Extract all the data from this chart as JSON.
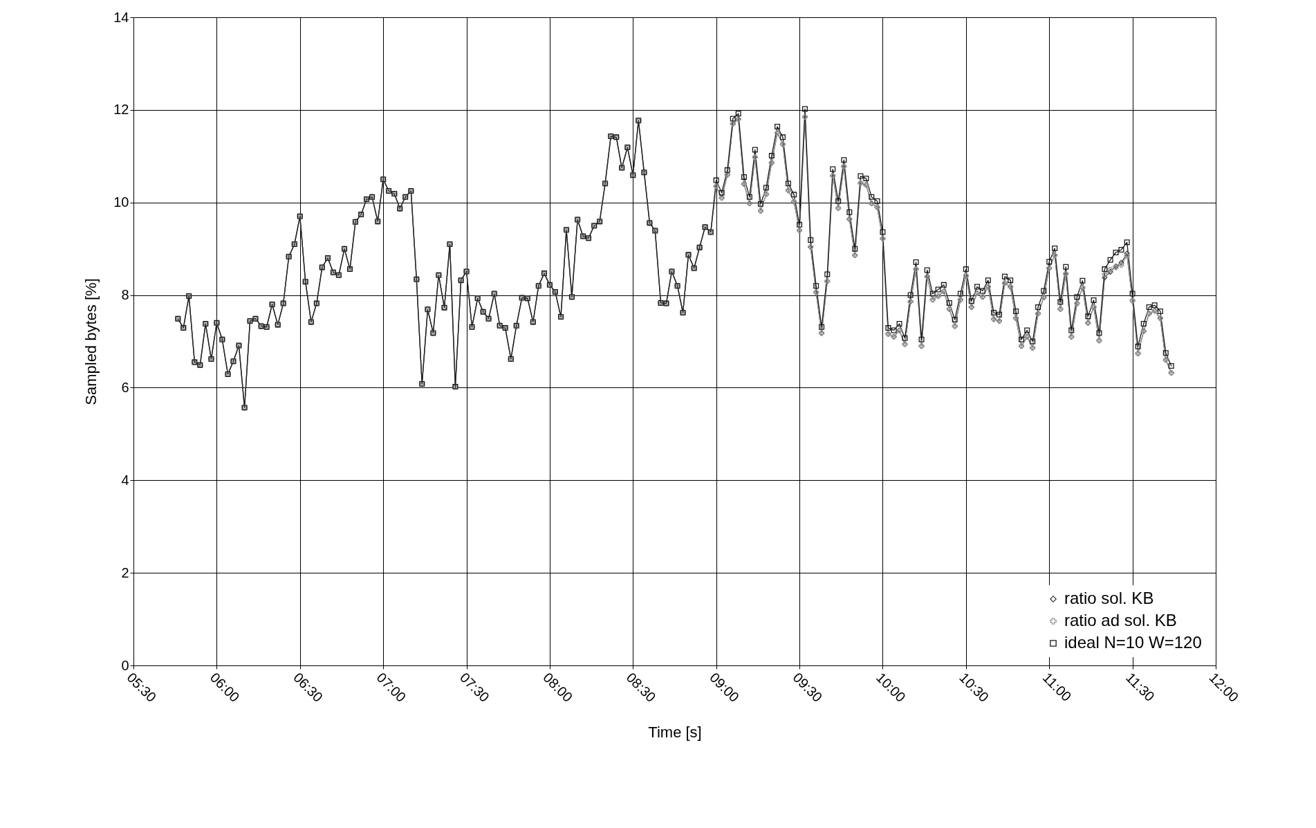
{
  "chart_data": {
    "type": "line",
    "xlabel": "Time [s]",
    "ylabel": "Sampled bytes [%]",
    "x": [
      5.767,
      5.8,
      5.833,
      5.867,
      5.9,
      5.933,
      5.967,
      6.0,
      6.033,
      6.067,
      6.1,
      6.133,
      6.167,
      6.2,
      6.233,
      6.267,
      6.3,
      6.333,
      6.367,
      6.4,
      6.433,
      6.467,
      6.5,
      6.533,
      6.567,
      6.6,
      6.633,
      6.667,
      6.7,
      6.733,
      6.767,
      6.8,
      6.833,
      6.867,
      6.9,
      6.933,
      6.967,
      7.0,
      7.033,
      7.067,
      7.1,
      7.133,
      7.167,
      7.2,
      7.233,
      7.267,
      7.3,
      7.333,
      7.367,
      7.4,
      7.433,
      7.467,
      7.5,
      7.533,
      7.567,
      7.6,
      7.633,
      7.667,
      7.7,
      7.733,
      7.767,
      7.8,
      7.833,
      7.867,
      7.9,
      7.933,
      7.967,
      8.0,
      8.033,
      8.067,
      8.1,
      8.133,
      8.167,
      8.2,
      8.233,
      8.267,
      8.3,
      8.333,
      8.367,
      8.4,
      8.433,
      8.467,
      8.5,
      8.533,
      8.567,
      8.6,
      8.633,
      8.667,
      8.7,
      8.733,
      8.767,
      8.8,
      8.833,
      8.867,
      8.9,
      8.933,
      8.967,
      9.0,
      9.033,
      9.067,
      9.1,
      9.133,
      9.167,
      9.2,
      9.233,
      9.267,
      9.3,
      9.333,
      9.367,
      9.4,
      9.433,
      9.467,
      9.5,
      9.533,
      9.567,
      9.6,
      9.633,
      9.667,
      9.7,
      9.733,
      9.767,
      9.8,
      9.833,
      9.867,
      9.9,
      9.933,
      9.967,
      10.0,
      10.033,
      10.067,
      10.1,
      10.133,
      10.167,
      10.2,
      10.233,
      10.267,
      10.3,
      10.333,
      10.367,
      10.4,
      10.433,
      10.467,
      10.5,
      10.533,
      10.567,
      10.6,
      10.633,
      10.667,
      10.7,
      10.733,
      10.767,
      10.8,
      10.833,
      10.867,
      10.9,
      10.933,
      10.967,
      11.0,
      11.033,
      11.067,
      11.1,
      11.133,
      11.167,
      11.2,
      11.233,
      11.267,
      11.3,
      11.333,
      11.367,
      11.4,
      11.433,
      11.467,
      11.5,
      11.533,
      11.567,
      11.6,
      11.633,
      11.667,
      11.7,
      11.733
    ],
    "series": [
      {
        "name": "ratio sol. KB",
        "color": "#404040",
        "marker": "diamond",
        "values": [
          7.49,
          7.29,
          7.98,
          6.55,
          6.49,
          7.38,
          6.62,
          7.4,
          7.04,
          6.29,
          6.57,
          6.91,
          5.57,
          7.44,
          7.49,
          7.33,
          7.31,
          7.8,
          7.36,
          7.82,
          8.83,
          9.1,
          9.7,
          8.29,
          7.42,
          7.82,
          8.6,
          8.8,
          8.49,
          8.43,
          9.0,
          8.56,
          9.58,
          9.74,
          10.07,
          10.12,
          9.59,
          10.5,
          10.25,
          10.19,
          9.87,
          10.12,
          10.25,
          8.34,
          6.08,
          7.69,
          7.18,
          8.43,
          7.73,
          9.1,
          6.02,
          8.32,
          8.51,
          7.31,
          7.93,
          7.64,
          7.49,
          8.03,
          7.34,
          7.29,
          6.62,
          7.34,
          7.94,
          7.93,
          7.42,
          8.2,
          8.47,
          8.22,
          8.07,
          7.53,
          9.41,
          7.96,
          9.63,
          9.27,
          9.23,
          9.5,
          9.59,
          10.41,
          11.43,
          11.41,
          10.75,
          11.19,
          10.59,
          11.77,
          10.65,
          9.56,
          9.39,
          7.83,
          7.82,
          8.51,
          8.2,
          7.62,
          8.87,
          8.58,
          9.03,
          9.47,
          9.36,
          10.35,
          10.1,
          10.6,
          11.7,
          11.8,
          10.4,
          9.98,
          10.98,
          9.82,
          10.18,
          10.86,
          11.5,
          11.26,
          10.26,
          10.02,
          9.4,
          11.85,
          9.04,
          8.06,
          7.18,
          8.3,
          10.58,
          9.88,
          10.78,
          9.64,
          8.86,
          10.42,
          10.38,
          9.98,
          9.9,
          9.22,
          7.16,
          7.1,
          7.24,
          6.94,
          7.86,
          8.56,
          6.9,
          8.4,
          7.9,
          7.98,
          8.08,
          7.7,
          7.33,
          7.9,
          8.42,
          7.74,
          8.04,
          7.96,
          8.18,
          7.48,
          7.44,
          8.26,
          8.18,
          7.5,
          6.9,
          7.1,
          6.86,
          7.6,
          7.95,
          8.58,
          8.86,
          7.7,
          8.46,
          7.1,
          7.82,
          8.16,
          7.4,
          7.74,
          7.02,
          8.38,
          8.5,
          8.62,
          8.7,
          8.9,
          7.88,
          6.74,
          7.22,
          7.6,
          7.66,
          7.5,
          6.6,
          6.32
        ]
      },
      {
        "name": "ratio ad sol. KB",
        "color": "#999999",
        "marker": "cross",
        "values": [
          7.49,
          7.29,
          7.98,
          6.55,
          6.49,
          7.38,
          6.62,
          7.4,
          7.04,
          6.29,
          6.57,
          6.91,
          5.57,
          7.44,
          7.49,
          7.33,
          7.31,
          7.8,
          7.36,
          7.82,
          8.83,
          9.1,
          9.7,
          8.29,
          7.42,
          7.82,
          8.6,
          8.8,
          8.49,
          8.43,
          9.0,
          8.56,
          9.58,
          9.74,
          10.07,
          10.12,
          9.59,
          10.5,
          10.25,
          10.19,
          9.87,
          10.12,
          10.25,
          8.34,
          6.08,
          7.69,
          7.18,
          8.43,
          7.73,
          9.1,
          6.02,
          8.32,
          8.51,
          7.31,
          7.93,
          7.64,
          7.49,
          8.03,
          7.34,
          7.29,
          6.62,
          7.34,
          7.94,
          7.93,
          7.42,
          8.2,
          8.47,
          8.22,
          8.07,
          7.53,
          9.41,
          7.96,
          9.63,
          9.27,
          9.23,
          9.5,
          9.59,
          10.41,
          11.43,
          11.41,
          10.75,
          11.19,
          10.59,
          11.77,
          10.65,
          9.56,
          9.39,
          7.83,
          7.82,
          8.51,
          8.2,
          7.62,
          8.87,
          8.58,
          9.03,
          9.47,
          9.36,
          10.35,
          10.1,
          10.6,
          11.7,
          11.8,
          10.4,
          9.98,
          10.98,
          9.82,
          10.18,
          10.86,
          11.5,
          11.26,
          10.26,
          10.02,
          9.4,
          11.85,
          9.04,
          8.06,
          7.18,
          8.3,
          10.58,
          9.88,
          10.78,
          9.64,
          8.86,
          10.42,
          10.38,
          9.98,
          9.9,
          9.22,
          7.16,
          7.1,
          7.24,
          6.94,
          7.86,
          8.56,
          6.9,
          8.4,
          7.9,
          7.98,
          8.08,
          7.7,
          7.33,
          7.9,
          8.42,
          7.74,
          8.04,
          7.96,
          8.18,
          7.48,
          7.44,
          8.26,
          8.18,
          7.5,
          6.9,
          7.1,
          6.86,
          7.6,
          7.95,
          8.58,
          8.86,
          7.7,
          8.46,
          7.1,
          7.82,
          8.16,
          7.4,
          7.74,
          7.02,
          8.45,
          8.55,
          8.6,
          8.65,
          8.85,
          7.88,
          6.74,
          7.22,
          7.6,
          7.66,
          7.5,
          6.6,
          6.32
        ]
      },
      {
        "name": "ideal N=10 W=120",
        "color": "#1a1a1a",
        "marker": "square",
        "values": [
          7.49,
          7.29,
          7.98,
          6.55,
          6.49,
          7.38,
          6.62,
          7.4,
          7.04,
          6.29,
          6.57,
          6.91,
          5.57,
          7.44,
          7.49,
          7.33,
          7.31,
          7.8,
          7.36,
          7.82,
          8.83,
          9.1,
          9.7,
          8.29,
          7.42,
          7.82,
          8.6,
          8.8,
          8.49,
          8.43,
          9.0,
          8.56,
          9.58,
          9.74,
          10.07,
          10.12,
          9.59,
          10.5,
          10.25,
          10.19,
          9.87,
          10.12,
          10.25,
          8.34,
          6.08,
          7.69,
          7.18,
          8.43,
          7.73,
          9.1,
          6.02,
          8.32,
          8.51,
          7.31,
          7.93,
          7.64,
          7.49,
          8.03,
          7.34,
          7.29,
          6.62,
          7.34,
          7.94,
          7.93,
          7.42,
          8.2,
          8.47,
          8.22,
          8.07,
          7.53,
          9.41,
          7.96,
          9.63,
          9.27,
          9.23,
          9.5,
          9.59,
          10.41,
          11.43,
          11.41,
          10.75,
          11.19,
          10.59,
          11.77,
          10.65,
          9.56,
          9.39,
          7.83,
          7.82,
          8.51,
          8.2,
          7.62,
          8.87,
          8.58,
          9.03,
          9.47,
          9.36,
          10.48,
          10.21,
          10.7,
          11.81,
          11.92,
          10.55,
          10.12,
          11.14,
          9.97,
          10.32,
          11.01,
          11.64,
          11.41,
          10.41,
          10.17,
          9.52,
          12.02,
          9.19,
          8.2,
          7.31,
          8.45,
          10.72,
          10.03,
          10.92,
          9.79,
          9.0,
          10.57,
          10.52,
          10.12,
          10.03,
          9.36,
          7.29,
          7.24,
          7.38,
          7.07,
          8.0,
          8.71,
          7.04,
          8.54,
          8.03,
          8.12,
          8.22,
          7.83,
          7.47,
          8.03,
          8.56,
          7.87,
          8.18,
          8.09,
          8.32,
          7.62,
          7.58,
          8.4,
          8.32,
          7.65,
          7.04,
          7.24,
          7.0,
          7.74,
          8.09,
          8.72,
          9.01,
          7.85,
          8.61,
          7.24,
          7.96,
          8.31,
          7.54,
          7.89,
          7.18,
          8.56,
          8.76,
          8.92,
          8.98,
          9.14,
          8.03,
          6.89,
          7.38,
          7.74,
          7.78,
          7.65,
          6.75,
          6.47
        ]
      }
    ],
    "xlim": [
      5.5,
      12
    ],
    "xticks": [
      {
        "value": 5.5,
        "label": "05:30"
      },
      {
        "value": 6,
        "label": "06:00"
      },
      {
        "value": 6.5,
        "label": "06:30"
      },
      {
        "value": 7,
        "label": "07:00"
      },
      {
        "value": 7.5,
        "label": "07:30"
      },
      {
        "value": 8,
        "label": "08:00"
      },
      {
        "value": 8.5,
        "label": "08:30"
      },
      {
        "value": 9,
        "label": "09:00"
      },
      {
        "value": 9.5,
        "label": "09:30"
      },
      {
        "value": 10,
        "label": "10:00"
      },
      {
        "value": 10.5,
        "label": "10:30"
      },
      {
        "value": 11,
        "label": "11:00"
      },
      {
        "value": 11.5,
        "label": "11:30"
      },
      {
        "value": 12,
        "label": "12:00"
      }
    ],
    "ylim": [
      0,
      14
    ],
    "yticks": [
      0,
      2,
      4,
      6,
      8,
      10,
      12,
      14
    ],
    "grid": true,
    "legend": "bottom right"
  }
}
